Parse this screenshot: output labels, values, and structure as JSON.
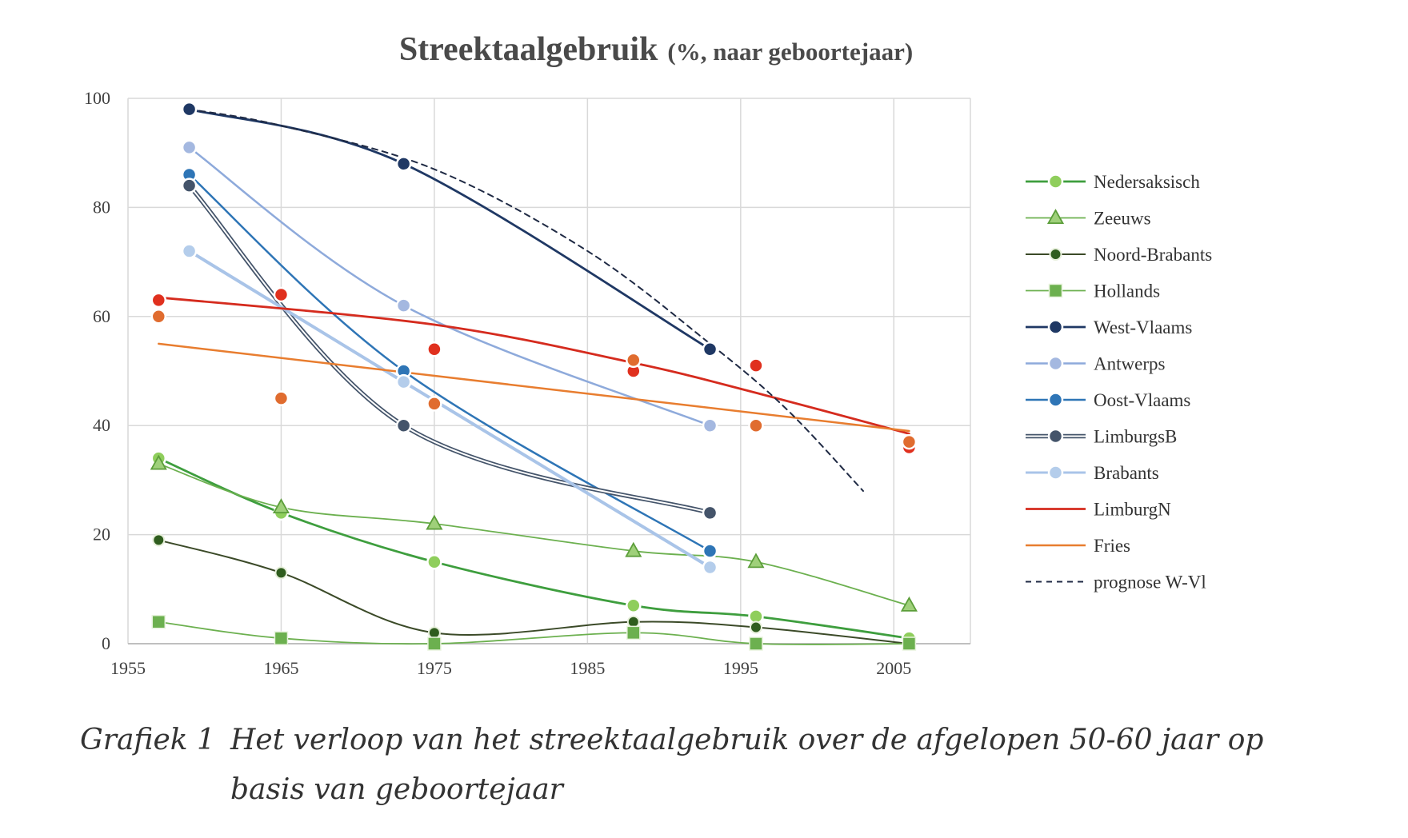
{
  "chart_data": {
    "type": "line",
    "title": "Streektaalgebruik",
    "title_suffix": "(%, naar geboortejaar)",
    "xlabel": "",
    "ylabel": "",
    "xlim": [
      1955,
      2010
    ],
    "ylim": [
      0,
      100
    ],
    "x_ticks": [
      1955,
      1965,
      1975,
      1985,
      1995,
      2005
    ],
    "y_ticks": [
      0,
      20,
      40,
      60,
      80,
      100
    ],
    "grid": true,
    "legend_position": "right",
    "series": [
      {
        "name": "Nedersaksisch",
        "color": "#3e9e3e",
        "fill": "#8fce5c",
        "marker": "circle",
        "width": 2.8,
        "points": [
          [
            1957,
            34
          ],
          [
            1965,
            24
          ],
          [
            1975,
            15
          ],
          [
            1988,
            7
          ],
          [
            1996,
            5
          ],
          [
            2006,
            1
          ]
        ]
      },
      {
        "name": "Zeeuws",
        "color": "#6cb04f",
        "fill": "#9fd07a",
        "marker": "triangle",
        "width": 1.8,
        "points": [
          [
            1957,
            33
          ],
          [
            1965,
            25
          ],
          [
            1975,
            22
          ],
          [
            1988,
            17
          ],
          [
            1996,
            15
          ],
          [
            2006,
            7
          ]
        ]
      },
      {
        "name": "Noord-Brabants",
        "color": "#3b4a28",
        "fill": "#2f5d1e",
        "marker": "circle-small",
        "width": 2,
        "points": [
          [
            1957,
            19
          ],
          [
            1965,
            13
          ],
          [
            1975,
            2
          ],
          [
            1988,
            4
          ],
          [
            1996,
            3
          ],
          [
            2006,
            0
          ]
        ]
      },
      {
        "name": "Hollands",
        "color": "#6cb04f",
        "fill": "#6cb04f",
        "marker": "square",
        "width": 1.8,
        "points": [
          [
            1957,
            4
          ],
          [
            1965,
            1
          ],
          [
            1975,
            0
          ],
          [
            1988,
            2
          ],
          [
            1996,
            0
          ],
          [
            2006,
            0
          ]
        ]
      },
      {
        "name": "West-Vlaams",
        "color": "#1f3864",
        "fill": "#1f3864",
        "marker": "circle",
        "width": 2.8,
        "points": [
          [
            1959,
            98
          ],
          [
            1973,
            88
          ],
          [
            1993,
            54
          ]
        ]
      },
      {
        "name": "Antwerps",
        "color": "#8eaadb",
        "fill": "#a4b8e0",
        "marker": "circle",
        "width": 2.5,
        "points": [
          [
            1959,
            91
          ],
          [
            1973,
            62
          ],
          [
            1993,
            40
          ]
        ]
      },
      {
        "name": "Oost-Vlaams",
        "color": "#2e75b6",
        "fill": "#2e75b6",
        "marker": "circle",
        "width": 2.5,
        "points": [
          [
            1959,
            86
          ],
          [
            1973,
            50
          ],
          [
            1993,
            17
          ]
        ]
      },
      {
        "name": "LimburgsB",
        "color": "#44546a",
        "fill": "#44546a",
        "marker": "circle",
        "width": 2.5,
        "double": true,
        "points": [
          [
            1959,
            84
          ],
          [
            1973,
            40
          ],
          [
            1993,
            24
          ]
        ]
      },
      {
        "name": "Brabants",
        "color": "#a9c4e8",
        "fill": "#b4cdeb",
        "marker": "circle",
        "width": 4,
        "points": [
          [
            1959,
            72
          ],
          [
            1973,
            48
          ],
          [
            1993,
            14
          ]
        ]
      },
      {
        "name": "LimburgN",
        "color": "#d52b1e",
        "fill": "#e0301e",
        "marker": "none",
        "width": 2.8,
        "points": [
          [
            1957,
            63.5
          ],
          [
            1975,
            58.5
          ],
          [
            1988,
            51.5
          ],
          [
            1996,
            46
          ],
          [
            2006,
            38.5
          ]
        ]
      },
      {
        "name": "Fries",
        "color": "#e87d2f",
        "fill": "#e06c2f",
        "marker": "none",
        "width": 2.5,
        "points": [
          [
            1957,
            55
          ],
          [
            2006,
            39
          ]
        ]
      },
      {
        "name": "prognose W-Vl",
        "color": "#1f2a44",
        "fill": "none",
        "marker": "none",
        "width": 2,
        "dashed": true,
        "points": [
          [
            1959,
            98
          ],
          [
            1965,
            95
          ],
          [
            1975,
            87
          ],
          [
            1985,
            72
          ],
          [
            1993,
            55
          ],
          [
            1998,
            43
          ],
          [
            2003,
            28
          ]
        ]
      }
    ],
    "scatter_points": [
      {
        "series": "LimburgN",
        "color": "#e0301e",
        "points": [
          [
            1957,
            63
          ],
          [
            1965,
            64
          ],
          [
            1975,
            54
          ],
          [
            1988,
            50
          ],
          [
            1996,
            51
          ],
          [
            2006,
            36
          ]
        ]
      },
      {
        "series": "Fries",
        "color": "#e06c2f",
        "points": [
          [
            1957,
            60
          ],
          [
            1965,
            45
          ],
          [
            1975,
            44
          ],
          [
            1988,
            52
          ],
          [
            1996,
            40
          ],
          [
            2006,
            37
          ]
        ]
      }
    ]
  },
  "caption": {
    "label": "Grafiek 1",
    "text": "Het verloop van het streektaalgebruik over de afgelopen 50-60 jaar op basis van geboortejaar"
  }
}
